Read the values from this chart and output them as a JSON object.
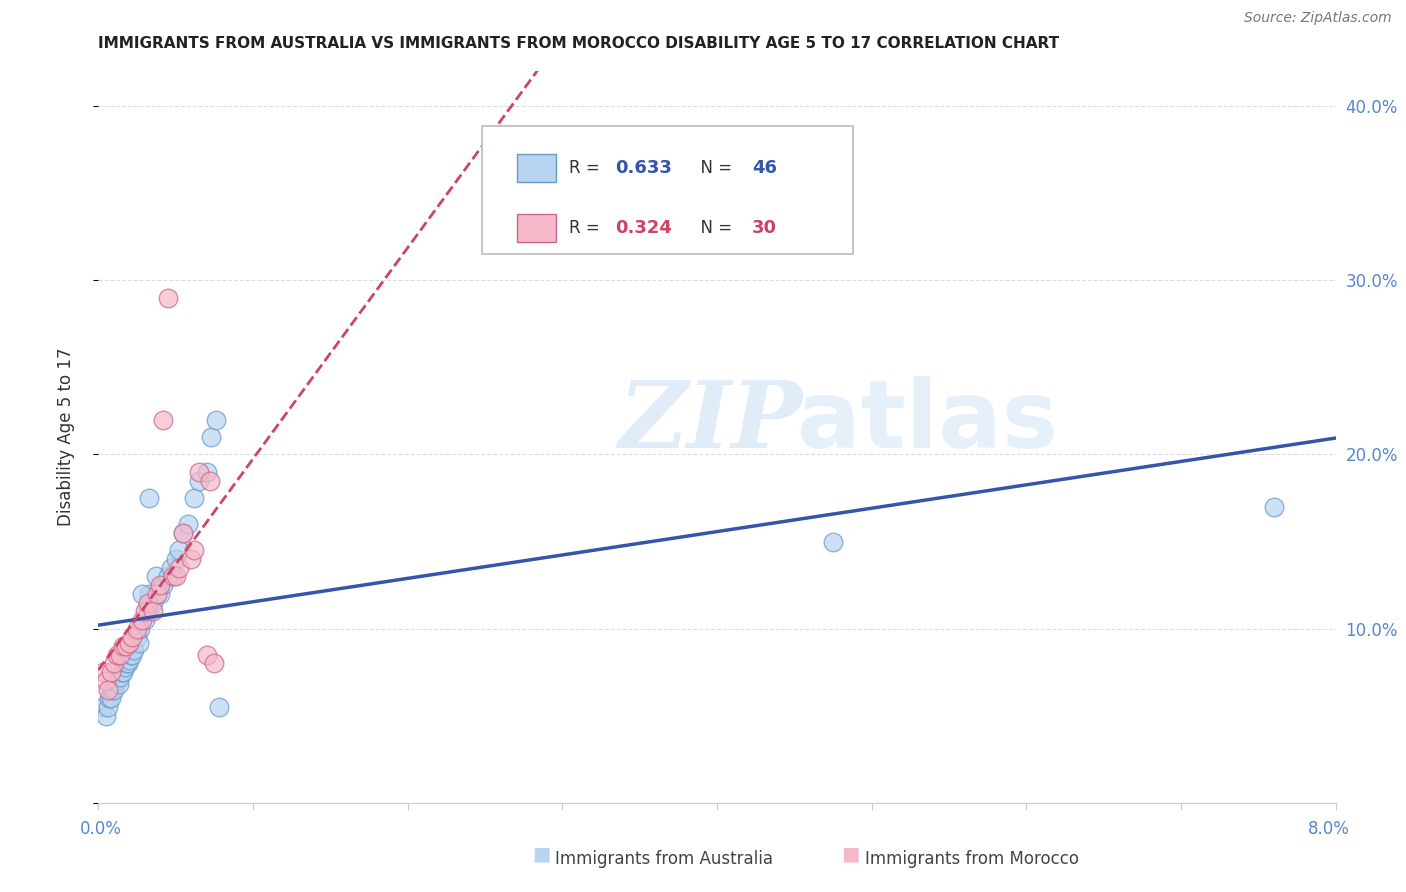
{
  "title": "IMMIGRANTS FROM AUSTRALIA VS IMMIGRANTS FROM MOROCCO DISABILITY AGE 5 TO 17 CORRELATION CHART",
  "source": "Source: ZipAtlas.com",
  "ylabel": "Disability Age 5 to 17",
  "australia_R": 0.633,
  "australia_N": 46,
  "morocco_R": 0.324,
  "morocco_N": 30,
  "watermark_zip": "ZIP",
  "watermark_atlas": "atlas",
  "australia_face_color": "#b8d4f0",
  "australia_edge_color": "#6699cc",
  "morocco_face_color": "#f5b8c8",
  "morocco_edge_color": "#cc6688",
  "australia_line_color": "#3355aa",
  "morocco_line_color": "#cc4466",
  "xlim": [
    0.0,
    0.08
  ],
  "ylim": [
    0.0,
    0.42
  ],
  "australia_x": [
    0.0003,
    0.0005,
    0.0006,
    0.0007,
    0.0008,
    0.0009,
    0.001,
    0.0011,
    0.0012,
    0.0013,
    0.0014,
    0.0015,
    0.0016,
    0.0017,
    0.0018,
    0.0019,
    0.002,
    0.0021,
    0.0022,
    0.0023,
    0.0025,
    0.0026,
    0.0027,
    0.003,
    0.0032,
    0.0033,
    0.0035,
    0.0037,
    0.004,
    0.0042,
    0.0045,
    0.0047,
    0.005,
    0.0052,
    0.0055,
    0.0058,
    0.0062,
    0.0065,
    0.007,
    0.0073,
    0.0076,
    0.0078,
    0.0033,
    0.0028,
    0.0475,
    0.076
  ],
  "australia_y": [
    0.055,
    0.05,
    0.055,
    0.06,
    0.06,
    0.065,
    0.065,
    0.07,
    0.07,
    0.068,
    0.072,
    0.075,
    0.075,
    0.078,
    0.08,
    0.08,
    0.082,
    0.085,
    0.085,
    0.088,
    0.095,
    0.092,
    0.1,
    0.105,
    0.11,
    0.12,
    0.115,
    0.13,
    0.12,
    0.125,
    0.13,
    0.135,
    0.14,
    0.145,
    0.155,
    0.16,
    0.175,
    0.185,
    0.19,
    0.21,
    0.22,
    0.055,
    0.175,
    0.12,
    0.15,
    0.17
  ],
  "morocco_x": [
    0.0003,
    0.0005,
    0.0006,
    0.0008,
    0.001,
    0.0012,
    0.0014,
    0.0016,
    0.0018,
    0.002,
    0.0022,
    0.0025,
    0.0028,
    0.003,
    0.0032,
    0.0035,
    0.0038,
    0.004,
    0.0042,
    0.0045,
    0.0048,
    0.005,
    0.0052,
    0.0055,
    0.006,
    0.0062,
    0.0065,
    0.007,
    0.0072,
    0.0075
  ],
  "morocco_y": [
    0.075,
    0.07,
    0.065,
    0.075,
    0.08,
    0.085,
    0.085,
    0.09,
    0.09,
    0.092,
    0.095,
    0.1,
    0.105,
    0.11,
    0.115,
    0.11,
    0.12,
    0.125,
    0.22,
    0.29,
    0.13,
    0.13,
    0.135,
    0.155,
    0.14,
    0.145,
    0.19,
    0.085,
    0.185,
    0.08
  ],
  "grid_color": "#dddddd",
  "spine_color": "#cccccc",
  "right_tick_color": "#5588cc",
  "bottom_label_color": "#5588cc"
}
